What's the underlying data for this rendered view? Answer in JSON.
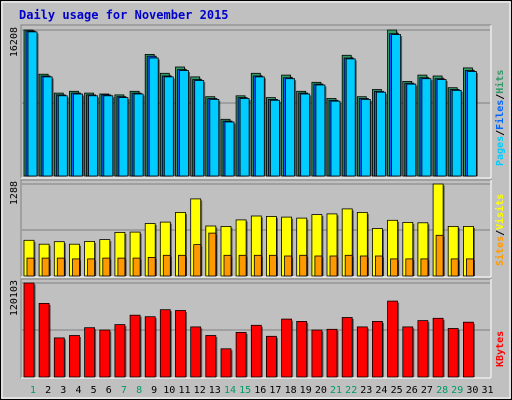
{
  "title": "Daily usage for November 2015",
  "colors": {
    "frame": "#c0c0c0",
    "plot_bg": "#c0c0c0",
    "title": "#0000cc",
    "hits": "#339966",
    "files": "#0066ff",
    "pages": "#00ccff",
    "visits": "#ffff00",
    "sites": "#ff9900",
    "kbytes": "#ff0000",
    "day_normal": "#000000",
    "day_weekend": "#009966"
  },
  "chart_data": [
    {
      "type": "bar",
      "name": "hits-files-pages",
      "ytick_label": "16208",
      "ylim": [
        0,
        16208
      ],
      "legend": [
        "Pages",
        "/",
        "Files",
        "/",
        "Hits"
      ],
      "series": [
        {
          "name": "Hits",
          "values": [
            16208,
            11300,
            9200,
            9400,
            9200,
            9100,
            9000,
            9400,
            13500,
            11400,
            12100,
            11000,
            8800,
            6300,
            8900,
            11400,
            8700,
            11200,
            9400,
            10400,
            8600,
            13400,
            8800,
            9600,
            16208,
            10500,
            11200,
            11100,
            9800,
            12000
          ]
        },
        {
          "name": "Files",
          "values": [
            16100,
            11100,
            9000,
            9200,
            9000,
            9000,
            8800,
            9200,
            13300,
            11100,
            11800,
            10700,
            8600,
            6100,
            8700,
            11100,
            8500,
            10900,
            9200,
            10200,
            8400,
            13100,
            8600,
            9400,
            15800,
            10300,
            10900,
            10800,
            9600,
            11700
          ]
        },
        {
          "name": "Pages",
          "values": [
            16000,
            11000,
            8900,
            9100,
            8900,
            8900,
            8700,
            9100,
            13100,
            11000,
            11700,
            10600,
            8500,
            6000,
            8600,
            11000,
            8400,
            10800,
            9100,
            10100,
            8300,
            13000,
            8500,
            9300,
            15700,
            10200,
            10800,
            10700,
            9500,
            11600
          ]
        }
      ]
    },
    {
      "type": "bar",
      "name": "visits-sites",
      "ytick_label": "1288",
      "ylim": [
        0,
        1288
      ],
      "legend": [
        "Sites",
        "/",
        "Visits"
      ],
      "series": [
        {
          "name": "Visits",
          "values": [
            500,
            445,
            480,
            445,
            485,
            510,
            610,
            615,
            735,
            755,
            890,
            1080,
            700,
            695,
            785,
            840,
            835,
            825,
            810,
            860,
            870,
            940,
            890,
            665,
            780,
            750,
            745,
            1288,
            695,
            695
          ]
        },
        {
          "name": "Sites",
          "values": [
            250,
            250,
            250,
            240,
            240,
            250,
            250,
            250,
            260,
            290,
            290,
            440,
            600,
            290,
            290,
            290,
            290,
            280,
            290,
            280,
            280,
            290,
            280,
            280,
            240,
            240,
            240,
            570,
            240,
            240
          ]
        }
      ]
    },
    {
      "type": "bar",
      "name": "kbytes",
      "ytick_label": "120103",
      "ylim": [
        0,
        120103
      ],
      "legend": [
        "KBytes"
      ],
      "series": [
        {
          "name": "KBytes",
          "values": [
            120103,
            94000,
            50000,
            53000,
            63000,
            60000,
            67000,
            79000,
            77000,
            86000,
            85000,
            64000,
            53000,
            36000,
            57000,
            66000,
            52000,
            74000,
            71000,
            60000,
            61000,
            76000,
            64000,
            71000,
            97000,
            64000,
            72000,
            75000,
            62000,
            70000
          ]
        }
      ]
    }
  ],
  "days": [
    {
      "label": "1",
      "weekend": true
    },
    {
      "label": "2",
      "weekend": false
    },
    {
      "label": "3",
      "weekend": false
    },
    {
      "label": "4",
      "weekend": false
    },
    {
      "label": "5",
      "weekend": false
    },
    {
      "label": "6",
      "weekend": false
    },
    {
      "label": "7",
      "weekend": true
    },
    {
      "label": "8",
      "weekend": true
    },
    {
      "label": "9",
      "weekend": false
    },
    {
      "label": "10",
      "weekend": false
    },
    {
      "label": "11",
      "weekend": false
    },
    {
      "label": "12",
      "weekend": false
    },
    {
      "label": "13",
      "weekend": false
    },
    {
      "label": "14",
      "weekend": true
    },
    {
      "label": "15",
      "weekend": true
    },
    {
      "label": "16",
      "weekend": false
    },
    {
      "label": "17",
      "weekend": false
    },
    {
      "label": "18",
      "weekend": false
    },
    {
      "label": "19",
      "weekend": false
    },
    {
      "label": "20",
      "weekend": false
    },
    {
      "label": "21",
      "weekend": true
    },
    {
      "label": "22",
      "weekend": true
    },
    {
      "label": "23",
      "weekend": false
    },
    {
      "label": "24",
      "weekend": false
    },
    {
      "label": "25",
      "weekend": false
    },
    {
      "label": "26",
      "weekend": false
    },
    {
      "label": "27",
      "weekend": false
    },
    {
      "label": "28",
      "weekend": true
    },
    {
      "label": "29",
      "weekend": true
    },
    {
      "label": "30",
      "weekend": false
    },
    {
      "label": "31",
      "weekend": false
    }
  ]
}
